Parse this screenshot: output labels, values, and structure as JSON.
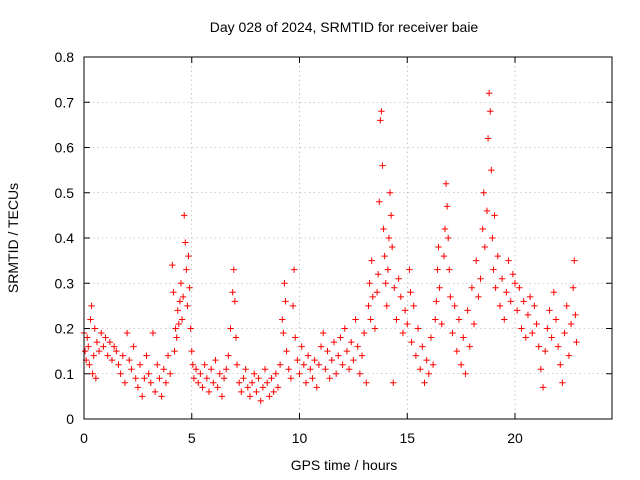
{
  "chart_data": {
    "type": "scatter",
    "title": "Day 028 of 2024, SRMTID for receiver baie",
    "xlabel": "GPS time / hours",
    "ylabel": "SRMTID / TECUs",
    "xlim": [
      0,
      24.5
    ],
    "ylim": [
      0,
      0.8
    ],
    "xticks": [
      0,
      5,
      10,
      15,
      20
    ],
    "xtick_labels": [
      "0",
      "5",
      "10",
      "15",
      "20"
    ],
    "yticks": [
      0,
      0.1,
      0.2,
      0.3,
      0.4,
      0.5,
      0.6,
      0.7,
      0.8
    ],
    "ytick_labels": [
      "0",
      "0.1",
      "0.2",
      "0.3",
      "0.4",
      "0.5",
      "0.6",
      "0.7",
      "0.8"
    ],
    "grid": true,
    "marker": "+",
    "color": "#ff0000",
    "series": [
      {
        "name": "SRMTID",
        "points": [
          [
            0.0,
            0.19
          ],
          [
            0.05,
            0.15
          ],
          [
            0.1,
            0.13
          ],
          [
            0.15,
            0.18
          ],
          [
            0.2,
            0.16
          ],
          [
            0.25,
            0.12
          ],
          [
            0.3,
            0.22
          ],
          [
            0.35,
            0.25
          ],
          [
            0.4,
            0.1
          ],
          [
            0.45,
            0.14
          ],
          [
            0.5,
            0.2
          ],
          [
            0.55,
            0.09
          ],
          [
            0.6,
            0.17
          ],
          [
            0.7,
            0.15
          ],
          [
            0.8,
            0.19
          ],
          [
            0.9,
            0.16
          ],
          [
            1.0,
            0.18
          ],
          [
            1.1,
            0.14
          ],
          [
            1.2,
            0.17
          ],
          [
            1.3,
            0.13
          ],
          [
            1.4,
            0.16
          ],
          [
            1.5,
            0.15
          ],
          [
            1.6,
            0.12
          ],
          [
            1.7,
            0.1
          ],
          [
            1.8,
            0.14
          ],
          [
            1.9,
            0.08
          ],
          [
            2.0,
            0.19
          ],
          [
            2.1,
            0.13
          ],
          [
            2.2,
            0.11
          ],
          [
            2.3,
            0.16
          ],
          [
            2.4,
            0.09
          ],
          [
            2.5,
            0.07
          ],
          [
            2.6,
            0.12
          ],
          [
            2.7,
            0.05
          ],
          [
            2.8,
            0.09
          ],
          [
            2.9,
            0.14
          ],
          [
            3.0,
            0.1
          ],
          [
            3.1,
            0.08
          ],
          [
            3.2,
            0.19
          ],
          [
            3.3,
            0.06
          ],
          [
            3.4,
            0.12
          ],
          [
            3.5,
            0.09
          ],
          [
            3.6,
            0.05
          ],
          [
            3.7,
            0.11
          ],
          [
            3.8,
            0.08
          ],
          [
            3.9,
            0.14
          ],
          [
            4.0,
            0.1
          ],
          [
            4.1,
            0.34
          ],
          [
            4.15,
            0.28
          ],
          [
            4.2,
            0.15
          ],
          [
            4.25,
            0.2
          ],
          [
            4.3,
            0.18
          ],
          [
            4.35,
            0.24
          ],
          [
            4.4,
            0.21
          ],
          [
            4.45,
            0.26
          ],
          [
            4.5,
            0.3
          ],
          [
            4.55,
            0.22
          ],
          [
            4.6,
            0.27
          ],
          [
            4.65,
            0.45
          ],
          [
            4.7,
            0.39
          ],
          [
            4.75,
            0.33
          ],
          [
            4.8,
            0.25
          ],
          [
            4.85,
            0.36
          ],
          [
            4.9,
            0.29
          ],
          [
            4.95,
            0.2
          ],
          [
            5.0,
            0.15
          ],
          [
            5.05,
            0.12
          ],
          [
            5.1,
            0.09
          ],
          [
            5.2,
            0.11
          ],
          [
            5.3,
            0.08
          ],
          [
            5.4,
            0.1
          ],
          [
            5.5,
            0.07
          ],
          [
            5.6,
            0.12
          ],
          [
            5.7,
            0.09
          ],
          [
            5.8,
            0.06
          ],
          [
            5.9,
            0.11
          ],
          [
            6.0,
            0.08
          ],
          [
            6.1,
            0.13
          ],
          [
            6.2,
            0.07
          ],
          [
            6.3,
            0.1
          ],
          [
            6.4,
            0.05
          ],
          [
            6.5,
            0.09
          ],
          [
            6.6,
            0.11
          ],
          [
            6.7,
            0.14
          ],
          [
            6.8,
            0.2
          ],
          [
            6.9,
            0.28
          ],
          [
            6.95,
            0.33
          ],
          [
            7.0,
            0.26
          ],
          [
            7.05,
            0.18
          ],
          [
            7.1,
            0.12
          ],
          [
            7.2,
            0.08
          ],
          [
            7.3,
            0.06
          ],
          [
            7.4,
            0.09
          ],
          [
            7.5,
            0.11
          ],
          [
            7.6,
            0.07
          ],
          [
            7.7,
            0.05
          ],
          [
            7.8,
            0.08
          ],
          [
            7.9,
            0.1
          ],
          [
            8.0,
            0.06
          ],
          [
            8.1,
            0.09
          ],
          [
            8.2,
            0.04
          ],
          [
            8.3,
            0.07
          ],
          [
            8.4,
            0.11
          ],
          [
            8.5,
            0.08
          ],
          [
            8.6,
            0.05
          ],
          [
            8.7,
            0.09
          ],
          [
            8.8,
            0.06
          ],
          [
            8.9,
            0.1
          ],
          [
            9.0,
            0.07
          ],
          [
            9.1,
            0.12
          ],
          [
            9.2,
            0.22
          ],
          [
            9.25,
            0.19
          ],
          [
            9.3,
            0.3
          ],
          [
            9.35,
            0.26
          ],
          [
            9.4,
            0.15
          ],
          [
            9.5,
            0.11
          ],
          [
            9.6,
            0.09
          ],
          [
            9.7,
            0.25
          ],
          [
            9.75,
            0.33
          ],
          [
            9.8,
            0.18
          ],
          [
            9.9,
            0.13
          ],
          [
            10.0,
            0.1
          ],
          [
            10.1,
            0.16
          ],
          [
            10.2,
            0.12
          ],
          [
            10.3,
            0.08
          ],
          [
            10.4,
            0.14
          ],
          [
            10.5,
            0.11
          ],
          [
            10.6,
            0.09
          ],
          [
            10.7,
            0.13
          ],
          [
            10.8,
            0.07
          ],
          [
            10.9,
            0.12
          ],
          [
            11.0,
            0.16
          ],
          [
            11.1,
            0.19
          ],
          [
            11.2,
            0.11
          ],
          [
            11.3,
            0.15
          ],
          [
            11.4,
            0.09
          ],
          [
            11.5,
            0.13
          ],
          [
            11.6,
            0.17
          ],
          [
            11.7,
            0.1
          ],
          [
            11.8,
            0.14
          ],
          [
            11.9,
            0.18
          ],
          [
            12.0,
            0.12
          ],
          [
            12.1,
            0.2
          ],
          [
            12.2,
            0.15
          ],
          [
            12.3,
            0.11
          ],
          [
            12.4,
            0.17
          ],
          [
            12.5,
            0.13
          ],
          [
            12.6,
            0.22
          ],
          [
            12.7,
            0.16
          ],
          [
            12.8,
            0.1
          ],
          [
            12.9,
            0.14
          ],
          [
            13.0,
            0.19
          ],
          [
            13.1,
            0.08
          ],
          [
            13.2,
            0.25
          ],
          [
            13.25,
            0.3
          ],
          [
            13.3,
            0.22
          ],
          [
            13.35,
            0.35
          ],
          [
            13.4,
            0.27
          ],
          [
            13.5,
            0.2
          ],
          [
            13.6,
            0.28
          ],
          [
            13.65,
            0.32
          ],
          [
            13.7,
            0.48
          ],
          [
            13.75,
            0.66
          ],
          [
            13.8,
            0.68
          ],
          [
            13.85,
            0.56
          ],
          [
            13.9,
            0.42
          ],
          [
            13.95,
            0.36
          ],
          [
            14.0,
            0.3
          ],
          [
            14.05,
            0.25
          ],
          [
            14.1,
            0.33
          ],
          [
            14.15,
            0.4
          ],
          [
            14.2,
            0.5
          ],
          [
            14.25,
            0.45
          ],
          [
            14.3,
            0.38
          ],
          [
            14.35,
            0.08
          ],
          [
            14.4,
            0.29
          ],
          [
            14.5,
            0.22
          ],
          [
            14.6,
            0.31
          ],
          [
            14.7,
            0.27
          ],
          [
            14.8,
            0.19
          ],
          [
            14.9,
            0.24
          ],
          [
            15.0,
            0.21
          ],
          [
            15.1,
            0.33
          ],
          [
            15.15,
            0.28
          ],
          [
            15.2,
            0.17
          ],
          [
            15.3,
            0.25
          ],
          [
            15.4,
            0.14
          ],
          [
            15.5,
            0.2
          ],
          [
            15.6,
            0.11
          ],
          [
            15.7,
            0.16
          ],
          [
            15.8,
            0.08
          ],
          [
            15.9,
            0.13
          ],
          [
            16.0,
            0.1
          ],
          [
            16.1,
            0.18
          ],
          [
            16.2,
            0.12
          ],
          [
            16.3,
            0.22
          ],
          [
            16.35,
            0.26
          ],
          [
            16.4,
            0.33
          ],
          [
            16.45,
            0.38
          ],
          [
            16.5,
            0.29
          ],
          [
            16.6,
            0.21
          ],
          [
            16.7,
            0.36
          ],
          [
            16.75,
            0.42
          ],
          [
            16.8,
            0.52
          ],
          [
            16.85,
            0.47
          ],
          [
            16.9,
            0.4
          ],
          [
            16.95,
            0.33
          ],
          [
            17.0,
            0.27
          ],
          [
            17.1,
            0.19
          ],
          [
            17.2,
            0.25
          ],
          [
            17.3,
            0.15
          ],
          [
            17.4,
            0.22
          ],
          [
            17.5,
            0.12
          ],
          [
            17.6,
            0.18
          ],
          [
            17.7,
            0.1
          ],
          [
            17.8,
            0.24
          ],
          [
            17.9,
            0.16
          ],
          [
            18.0,
            0.29
          ],
          [
            18.1,
            0.21
          ],
          [
            18.2,
            0.35
          ],
          [
            18.3,
            0.27
          ],
          [
            18.4,
            0.31
          ],
          [
            18.5,
            0.42
          ],
          [
            18.55,
            0.5
          ],
          [
            18.6,
            0.38
          ],
          [
            18.7,
            0.46
          ],
          [
            18.75,
            0.62
          ],
          [
            18.8,
            0.72
          ],
          [
            18.85,
            0.68
          ],
          [
            18.9,
            0.55
          ],
          [
            18.95,
            0.4
          ],
          [
            19.0,
            0.33
          ],
          [
            19.05,
            0.45
          ],
          [
            19.1,
            0.29
          ],
          [
            19.2,
            0.36
          ],
          [
            19.3,
            0.25
          ],
          [
            19.4,
            0.31
          ],
          [
            19.5,
            0.22
          ],
          [
            19.6,
            0.28
          ],
          [
            19.7,
            0.35
          ],
          [
            19.8,
            0.26
          ],
          [
            19.9,
            0.32
          ],
          [
            20.0,
            0.3
          ],
          [
            20.1,
            0.24
          ],
          [
            20.2,
            0.29
          ],
          [
            20.3,
            0.2
          ],
          [
            20.4,
            0.26
          ],
          [
            20.5,
            0.18
          ],
          [
            20.6,
            0.23
          ],
          [
            20.7,
            0.27
          ],
          [
            20.8,
            0.19
          ],
          [
            20.9,
            0.25
          ],
          [
            21.0,
            0.21
          ],
          [
            21.1,
            0.16
          ],
          [
            21.2,
            0.11
          ],
          [
            21.3,
            0.07
          ],
          [
            21.4,
            0.15
          ],
          [
            21.5,
            0.2
          ],
          [
            21.6,
            0.24
          ],
          [
            21.7,
            0.18
          ],
          [
            21.8,
            0.28
          ],
          [
            21.9,
            0.22
          ],
          [
            22.0,
            0.16
          ],
          [
            22.1,
            0.12
          ],
          [
            22.2,
            0.08
          ],
          [
            22.3,
            0.19
          ],
          [
            22.4,
            0.25
          ],
          [
            22.5,
            0.14
          ],
          [
            22.6,
            0.21
          ],
          [
            22.7,
            0.29
          ],
          [
            22.75,
            0.35
          ],
          [
            22.8,
            0.23
          ],
          [
            22.85,
            0.17
          ]
        ]
      }
    ]
  }
}
